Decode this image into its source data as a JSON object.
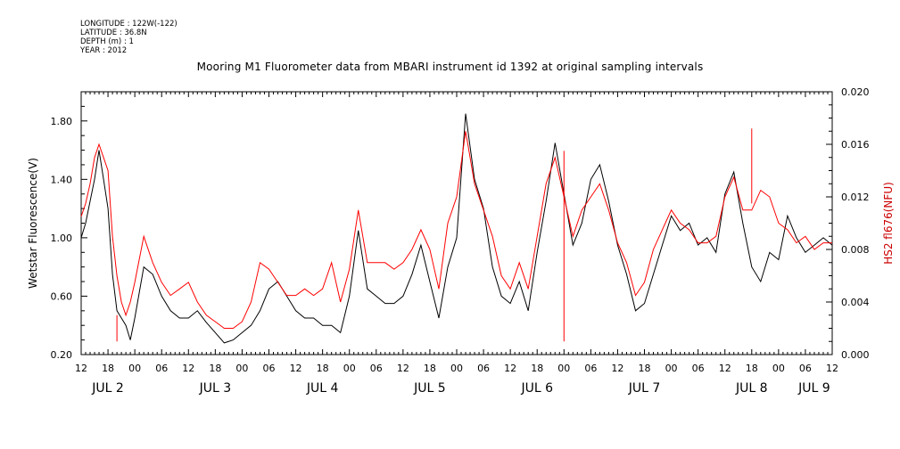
{
  "header": {
    "longitude": "LONGITUDE : 122W(-122)",
    "latitude": "LATITUDE : 36.8N",
    "depth": "DEPTH (m) : 1",
    "year": "YEAR : 2012"
  },
  "chart_data": {
    "type": "line",
    "title": "Mooring M1 Fluorometer data from MBARI instrument id 1392 at original sampling intervals",
    "ylabel_left": "Wetstar Fluorescence(V)",
    "ylabel_right": "HS2 fl676(NFU)",
    "ylim_left": [
      0.2,
      2.0
    ],
    "ylim_right": [
      0.0,
      0.02
    ],
    "yticks_left": [
      "0.20",
      "0.60",
      "1.00",
      "1.40",
      "1.80"
    ],
    "yticks_right": [
      "0.000",
      "0.004",
      "0.008",
      "0.012",
      "0.016",
      "0.020"
    ],
    "x_range_hours": [
      0,
      168
    ],
    "x_ticks_hours": [
      "12",
      "18",
      "00",
      "06",
      "12",
      "18",
      "00",
      "06",
      "12",
      "18",
      "00",
      "06",
      "12",
      "18",
      "00",
      "06",
      "12",
      "18",
      "00",
      "06",
      "12",
      "18",
      "00",
      "06",
      "12",
      "18",
      "00",
      "06",
      "12"
    ],
    "day_labels": [
      "JUL 2",
      "JUL 3",
      "JUL 4",
      "JUL 5",
      "JUL 6",
      "JUL 7",
      "JUL 8",
      "JUL 9"
    ],
    "grid": false,
    "colors": {
      "wetstar": "#000000",
      "hs2": "#ff0000",
      "right_axis_label": "#cc0000"
    },
    "series": [
      {
        "name": "Wetstar Fluorescence(V)",
        "axis": "left",
        "x": [
          0,
          1,
          2,
          3,
          4,
          5,
          6,
          7,
          8,
          9,
          10,
          11,
          12,
          14,
          16,
          18,
          20,
          22,
          24,
          26,
          28,
          30,
          32,
          34,
          36,
          38,
          40,
          42,
          44,
          46,
          48,
          50,
          52,
          54,
          56,
          58,
          60,
          62,
          64,
          66,
          68,
          70,
          72,
          74,
          76,
          78,
          80,
          82,
          84,
          86,
          88,
          90,
          92,
          94,
          96,
          98,
          100,
          102,
          104,
          106,
          108,
          110,
          112,
          114,
          116,
          118,
          120,
          122,
          124,
          126,
          128,
          130,
          132,
          134,
          136,
          138,
          140,
          142,
          144,
          146,
          148,
          150,
          152,
          154,
          156,
          158,
          160,
          162,
          164,
          166,
          168
        ],
        "y": [
          1.0,
          1.1,
          1.25,
          1.4,
          1.6,
          1.4,
          1.2,
          0.75,
          0.5,
          0.45,
          0.4,
          0.3,
          0.45,
          0.8,
          0.75,
          0.6,
          0.5,
          0.45,
          0.45,
          0.5,
          0.42,
          0.35,
          0.28,
          0.3,
          0.35,
          0.4,
          0.5,
          0.65,
          0.7,
          0.6,
          0.5,
          0.45,
          0.45,
          0.4,
          0.4,
          0.35,
          0.6,
          1.05,
          0.65,
          0.6,
          0.55,
          0.55,
          0.6,
          0.75,
          0.95,
          0.7,
          0.45,
          0.8,
          1.0,
          1.85,
          1.4,
          1.2,
          0.8,
          0.6,
          0.55,
          0.7,
          0.5,
          0.9,
          1.25,
          1.65,
          1.3,
          0.95,
          1.1,
          1.4,
          1.5,
          1.25,
          0.95,
          0.75,
          0.5,
          0.55,
          0.75,
          0.95,
          1.15,
          1.05,
          1.1,
          0.95,
          1.0,
          0.9,
          1.3,
          1.45,
          1.1,
          0.8,
          0.7,
          0.9,
          0.85,
          1.15,
          1.0,
          0.9,
          0.95,
          1.0,
          0.95
        ]
      },
      {
        "name": "HS2 fl676(NFU)",
        "axis": "right",
        "x": [
          0,
          1,
          2,
          3,
          4,
          5,
          6,
          7,
          8,
          9,
          10,
          11,
          12,
          14,
          16,
          18,
          20,
          22,
          24,
          26,
          28,
          30,
          32,
          34,
          36,
          38,
          40,
          42,
          44,
          46,
          48,
          50,
          52,
          54,
          56,
          58,
          60,
          62,
          64,
          66,
          68,
          70,
          72,
          74,
          76,
          78,
          80,
          82,
          84,
          86,
          88,
          90,
          92,
          94,
          96,
          98,
          100,
          102,
          104,
          106,
          108,
          110,
          112,
          114,
          116,
          118,
          120,
          122,
          124,
          126,
          128,
          130,
          132,
          134,
          136,
          138,
          140,
          142,
          144,
          146,
          148,
          150,
          152,
          154,
          156,
          158,
          160,
          162,
          164,
          166,
          168
        ],
        "y": [
          0.0105,
          0.0115,
          0.013,
          0.015,
          0.016,
          0.015,
          0.014,
          0.009,
          0.006,
          0.004,
          0.003,
          0.004,
          0.0055,
          0.009,
          0.007,
          0.0055,
          0.0045,
          0.005,
          0.0055,
          0.004,
          0.003,
          0.0025,
          0.002,
          0.002,
          0.0025,
          0.004,
          0.007,
          0.0065,
          0.0055,
          0.0045,
          0.0045,
          0.005,
          0.0045,
          0.005,
          0.007,
          0.004,
          0.0065,
          0.011,
          0.007,
          0.007,
          0.007,
          0.0065,
          0.007,
          0.008,
          0.0095,
          0.008,
          0.005,
          0.01,
          0.012,
          0.017,
          0.013,
          0.011,
          0.009,
          0.006,
          0.005,
          0.007,
          0.005,
          0.009,
          0.013,
          0.015,
          0.012,
          0.009,
          0.011,
          0.012,
          0.013,
          0.011,
          0.0085,
          0.007,
          0.0045,
          0.0055,
          0.008,
          0.0095,
          0.011,
          0.01,
          0.0095,
          0.0085,
          0.0085,
          0.009,
          0.012,
          0.0135,
          0.011,
          0.011,
          0.0125,
          0.012,
          0.01,
          0.0095,
          0.0085,
          0.009,
          0.008,
          0.0085,
          0.0085
        ]
      }
    ],
    "annotations": [
      {
        "series": "HS2 fl676(NFU)",
        "kind": "spike",
        "x": 8,
        "from": 0.003,
        "to": 0.001
      },
      {
        "series": "HS2 fl676(NFU)",
        "kind": "spike",
        "x": 108,
        "from": 0.0155,
        "to": 0.001
      },
      {
        "series": "HS2 fl676(NFU)",
        "kind": "spike",
        "x": 150,
        "from": 0.0115,
        "to": 0.0172
      }
    ]
  }
}
